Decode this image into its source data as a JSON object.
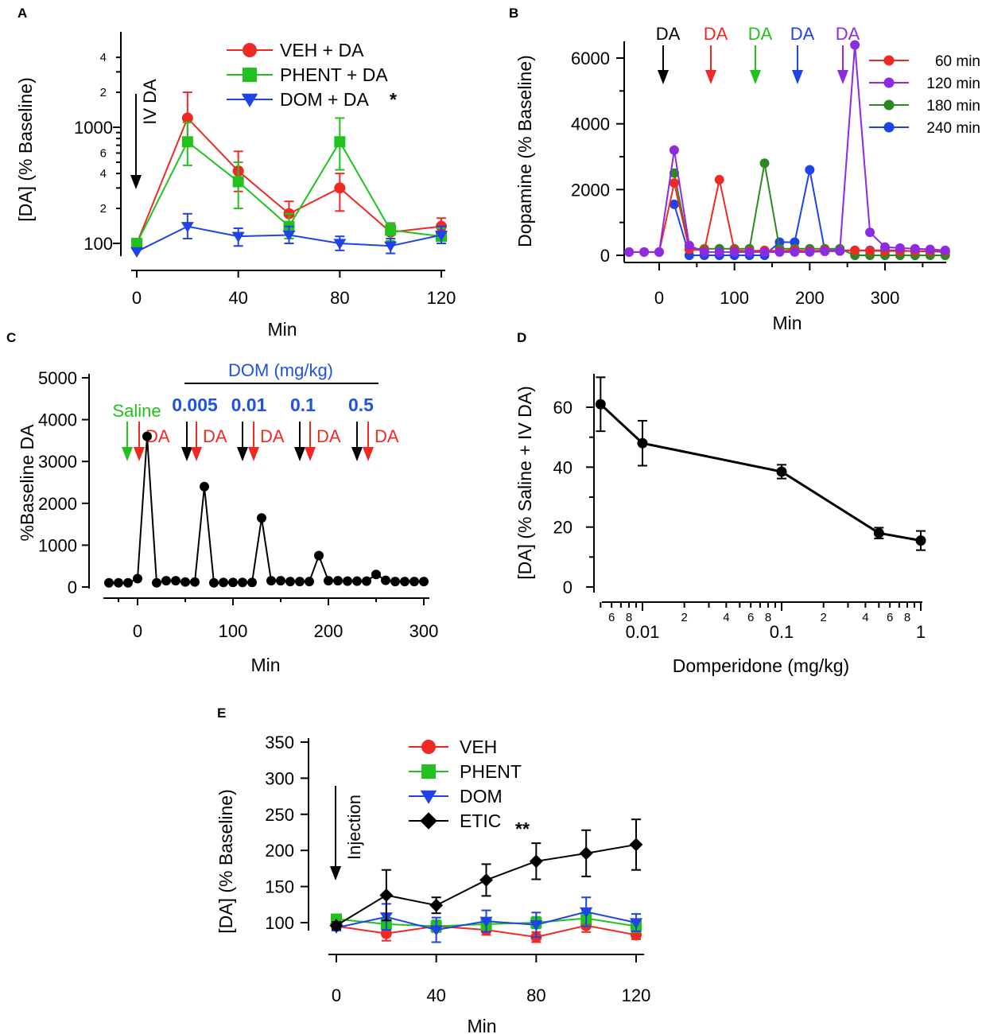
{
  "colors": {
    "red": "#ef2a24",
    "green": "#22c21e",
    "blue": "#1f43e8",
    "black": "#000000",
    "purple": "#8c2be2",
    "darkgreen": "#2a8a20",
    "dose_blue": "#1f52e3"
  },
  "chart_data": [
    {
      "id": "A",
      "type": "line",
      "panel_label": "A",
      "xlabel": "Min",
      "ylabel": "[DA] (% Baseline)",
      "yscale": "log",
      "xlim": [
        -5,
        122
      ],
      "ylim": [
        85,
        5000
      ],
      "x_ticks": [
        "0",
        "40",
        "80",
        "120"
      ],
      "y_major_ticks": [
        "100",
        "1000"
      ],
      "y_minor_ticks": [
        "2",
        "4",
        "6",
        "2",
        "4"
      ],
      "annotation": "IV DA",
      "x": [
        0,
        20,
        40,
        60,
        80,
        100,
        120
      ],
      "series": [
        {
          "name": "VEH + DA",
          "color": "red",
          "marker": "circle",
          "values": [
            100,
            1200,
            420,
            180,
            300,
            125,
            140
          ],
          "err": [
            [
              100,
              100
            ],
            [
              750,
              2000
            ],
            [
              280,
              620
            ],
            [
              135,
              230
            ],
            [
              190,
              400
            ],
            [
              105,
              145
            ],
            [
              115,
              165
            ]
          ]
        },
        {
          "name": "PHENT + DA",
          "color": "green",
          "marker": "square",
          "values": [
            100,
            750,
            340,
            140,
            750,
            130,
            115
          ],
          "err": [
            [
              100,
              100
            ],
            [
              470,
              1100
            ],
            [
              200,
              500
            ],
            [
              110,
              180
            ],
            [
              430,
              1200
            ],
            [
              105,
              150
            ],
            [
              100,
              135
            ]
          ]
        },
        {
          "name": "DOM + DA",
          "color": "blue",
          "marker": "triangle-down",
          "values": [
            85,
            140,
            115,
            118,
            100,
            95,
            118
          ],
          "err": [
            [
              85,
              85
            ],
            [
              110,
              180
            ],
            [
              95,
              135
            ],
            [
              100,
              140
            ],
            [
              87,
              115
            ],
            [
              82,
              110
            ],
            [
              100,
              140
            ]
          ]
        }
      ],
      "legend_star": "*"
    },
    {
      "id": "B",
      "type": "line",
      "panel_label": "B",
      "xlabel": "Min",
      "ylabel": "Dopamine (% Baseline)",
      "xlim": [
        -45,
        382
      ],
      "ylim": [
        -50,
        6600
      ],
      "x_ticks": [
        "0",
        "100",
        "200",
        "300"
      ],
      "y_ticks": [
        "0",
        "2000",
        "4000",
        "6000"
      ],
      "arrow_labels": [
        "DA",
        "DA",
        "DA",
        "DA",
        "DA"
      ],
      "series": [
        {
          "name": "60 min",
          "color": "red",
          "x": [
            -40,
            -20,
            0,
            20,
            40,
            60,
            80,
            100,
            120,
            140,
            160,
            180,
            200,
            220,
            240,
            260,
            280,
            300,
            320,
            340,
            360,
            380
          ],
          "values": [
            100,
            100,
            100,
            2200,
            180,
            150,
            2300,
            150,
            130,
            150,
            130,
            150,
            130,
            150,
            130,
            150,
            140,
            130,
            130,
            130,
            130,
            130
          ]
        },
        {
          "name": "120 min",
          "color": "purple",
          "x": [
            -40,
            -20,
            0,
            20,
            40,
            60,
            80,
            100,
            120,
            140,
            160,
            180,
            200,
            220,
            240,
            260,
            280,
            300,
            320,
            340,
            360,
            380
          ],
          "values": [
            100,
            100,
            100,
            3200,
            300,
            100,
            100,
            100,
            100,
            100,
            100,
            100,
            100,
            120,
            130,
            6400,
            700,
            250,
            220,
            200,
            180,
            150
          ]
        },
        {
          "name": "180 min",
          "color": "darkgreen",
          "x": [
            20,
            40,
            60,
            80,
            100,
            120,
            140,
            160,
            180,
            200,
            220,
            240,
            260,
            280,
            300,
            320,
            340,
            360,
            380
          ],
          "values": [
            2500,
            200,
            200,
            200,
            200,
            200,
            2800,
            200,
            200,
            200,
            200,
            200,
            0,
            0,
            0,
            0,
            0,
            0,
            0
          ]
        },
        {
          "name": "240 min",
          "color": "blue",
          "x": [
            20,
            40,
            60,
            80,
            100,
            120,
            140,
            160,
            180,
            200,
            220,
            240,
            260,
            280,
            300,
            320,
            340,
            360,
            380
          ],
          "values": [
            1550,
            0,
            0,
            0,
            0,
            0,
            0,
            400,
            400,
            2600,
            150,
            150,
            150,
            150,
            150,
            150,
            120,
            120,
            100
          ]
        }
      ]
    },
    {
      "id": "C",
      "type": "line",
      "panel_label": "C",
      "xlabel": "Min",
      "ylabel": "%Baseline DA",
      "xlim": [
        -35,
        310
      ],
      "ylim": [
        -50,
        5000
      ],
      "x_ticks": [
        "0",
        "100",
        "200",
        "300"
      ],
      "y_ticks": [
        "0",
        "1000",
        "2000",
        "3000",
        "4000",
        "5000"
      ],
      "dose_title": "DOM (mg/kg)",
      "saline_label": "Saline",
      "da_labels": [
        "DA",
        "DA",
        "DA",
        "DA",
        "DA"
      ],
      "doses": [
        "0.005",
        "0.01",
        "0.1",
        "0.5"
      ],
      "series": [
        {
          "name": "DA",
          "color": "black",
          "x": [
            -30,
            -20,
            -10,
            0,
            10,
            20,
            30,
            40,
            50,
            60,
            70,
            80,
            90,
            100,
            110,
            120,
            130,
            140,
            150,
            160,
            170,
            180,
            190,
            200,
            210,
            220,
            230,
            240,
            250,
            260,
            270,
            280,
            290,
            300
          ],
          "values": [
            100,
            100,
            100,
            200,
            3600,
            100,
            150,
            150,
            120,
            120,
            2400,
            100,
            110,
            110,
            110,
            110,
            1650,
            150,
            150,
            130,
            130,
            130,
            750,
            150,
            150,
            140,
            140,
            140,
            300,
            160,
            130,
            130,
            130,
            130
          ]
        }
      ]
    },
    {
      "id": "D",
      "type": "line",
      "panel_label": "D",
      "xlabel": "Domperidone (mg/kg)",
      "ylabel": "[DA] (% Saline + IV DA)",
      "xscale": "log",
      "xlim": [
        0.0044,
        1.1
      ],
      "ylim": [
        -2,
        70
      ],
      "x_major_ticks": [
        "0.01",
        "0.1",
        "1"
      ],
      "x_minor_ticks": [
        "6",
        "8",
        "2",
        "4",
        "6",
        "8",
        "2",
        "4",
        "6",
        "8"
      ],
      "y_ticks": [
        "0",
        "20",
        "40",
        "60"
      ],
      "series": [
        {
          "name": "DOM",
          "color": "black",
          "x": [
            0.005,
            0.01,
            0.1,
            0.5,
            1
          ],
          "values": [
            61,
            48,
            38.5,
            18,
            15.5
          ],
          "err": [
            9,
            7.5,
            2.3,
            1.8,
            3.2
          ]
        }
      ]
    },
    {
      "id": "E",
      "type": "line",
      "panel_label": "E",
      "xlabel": "Min",
      "ylabel": "[DA] (% Baseline)",
      "xlim": [
        -5,
        122
      ],
      "ylim": [
        60,
        355
      ],
      "x_ticks": [
        "0",
        "40",
        "80",
        "120"
      ],
      "y_ticks": [
        "100",
        "150",
        "200",
        "250",
        "300",
        "350"
      ],
      "annotation": "Injection",
      "legend_star": "**",
      "x": [
        0,
        20,
        40,
        60,
        80,
        100,
        120
      ],
      "series": [
        {
          "name": "VEH",
          "color": "red",
          "marker": "circle",
          "values": [
            95,
            85,
            95,
            90,
            80,
            96,
            83
          ],
          "err": [
            5,
            10,
            8,
            7,
            7,
            9,
            6
          ]
        },
        {
          "name": "PHENT",
          "color": "green",
          "marker": "square",
          "values": [
            105,
            98,
            95,
            98,
            100,
            106,
            95
          ],
          "err": [
            4,
            8,
            8,
            8,
            8,
            10,
            8
          ]
        },
        {
          "name": "DOM",
          "color": "blue",
          "marker": "triangle-down",
          "values": [
            93,
            108,
            90,
            102,
            97,
            115,
            100
          ],
          "err": [
            4,
            18,
            17,
            15,
            17,
            20,
            12
          ]
        },
        {
          "name": "ETIC",
          "color": "black",
          "marker": "diamond",
          "values": [
            96,
            138,
            124,
            159,
            185,
            196,
            208
          ],
          "err": [
            5,
            35,
            11,
            22,
            25,
            32,
            35
          ]
        }
      ]
    }
  ]
}
